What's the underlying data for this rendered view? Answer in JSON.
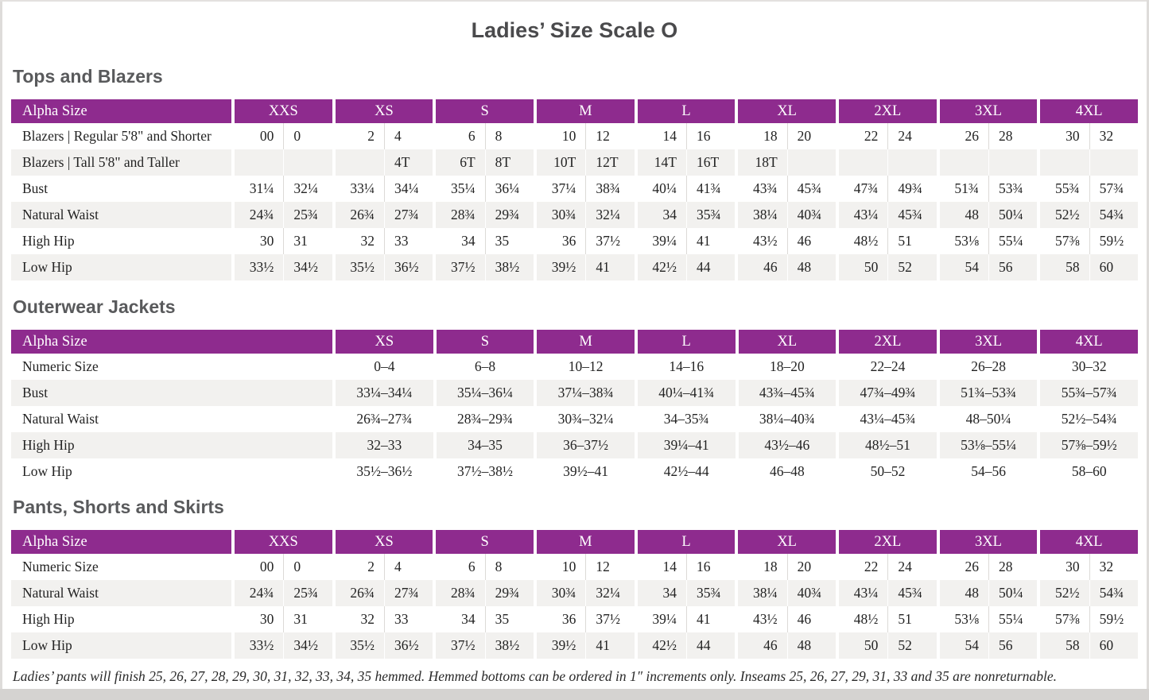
{
  "page": {
    "title": "Ladies’ Size Scale O"
  },
  "colors": {
    "header_purple": "#8e2b8e",
    "row_alt_gray": "#f2f1ef",
    "heading_gray": "#595a5c",
    "body_text": "#232323"
  },
  "sections": [
    {
      "heading": "Tops and Blazers",
      "table": {
        "label_header": "Alpha Size",
        "label_col_width": 277,
        "split_columns": true,
        "columns": [
          "XXS",
          "XS",
          "S",
          "M",
          "L",
          "XL",
          "2XL",
          "3XL",
          "4XL"
        ],
        "rows": [
          {
            "label": "Blazers  |  Regular 5'8\" and Shorter",
            "cells": [
              [
                "00",
                "0"
              ],
              [
                "2",
                "4"
              ],
              [
                "6",
                "8"
              ],
              [
                "10",
                "12"
              ],
              [
                "14",
                "16"
              ],
              [
                "18",
                "20"
              ],
              [
                "22",
                "24"
              ],
              [
                "26",
                "28"
              ],
              [
                "30",
                "32"
              ]
            ]
          },
          {
            "label": "Blazers  |  Tall 5'8\" and Taller",
            "cells": [
              [
                "",
                ""
              ],
              [
                "",
                "4T"
              ],
              [
                "6T",
                "8T"
              ],
              [
                "10T",
                "12T"
              ],
              [
                "14T",
                "16T"
              ],
              [
                "18T",
                ""
              ],
              [
                "",
                ""
              ],
              [
                "",
                ""
              ],
              [
                "",
                ""
              ]
            ]
          },
          {
            "label": "Bust",
            "cells": [
              [
                "31¼",
                "32¼"
              ],
              [
                "33¼",
                "34¼"
              ],
              [
                "35¼",
                "36¼"
              ],
              [
                "37¼",
                "38¾"
              ],
              [
                "40¼",
                "41¾"
              ],
              [
                "43¾",
                "45¾"
              ],
              [
                "47¾",
                "49¾"
              ],
              [
                "51¾",
                "53¾"
              ],
              [
                "55¾",
                "57¾"
              ]
            ]
          },
          {
            "label": "Natural Waist",
            "cells": [
              [
                "24¾",
                "25¾"
              ],
              [
                "26¾",
                "27¾"
              ],
              [
                "28¾",
                "29¾"
              ],
              [
                "30¾",
                "32¼"
              ],
              [
                "34",
                "35¾"
              ],
              [
                "38¼",
                "40¾"
              ],
              [
                "43¼",
                "45¾"
              ],
              [
                "48",
                "50¼"
              ],
              [
                "52½",
                "54¾"
              ]
            ]
          },
          {
            "label": "High Hip",
            "cells": [
              [
                "30",
                "31"
              ],
              [
                "32",
                "33"
              ],
              [
                "34",
                "35"
              ],
              [
                "36",
                "37½"
              ],
              [
                "39¼",
                "41"
              ],
              [
                "43½",
                "46"
              ],
              [
                "48½",
                "51"
              ],
              [
                "53⅛",
                "55¼"
              ],
              [
                "57⅜",
                "59½"
              ]
            ]
          },
          {
            "label": "Low Hip",
            "cells": [
              [
                "33½",
                "34½"
              ],
              [
                "35½",
                "36½"
              ],
              [
                "37½",
                "38½"
              ],
              [
                "39½",
                "41"
              ],
              [
                "42½",
                "44"
              ],
              [
                "46",
                "48"
              ],
              [
                "50",
                "52"
              ],
              [
                "54",
                "56"
              ],
              [
                "58",
                "60"
              ]
            ]
          }
        ]
      }
    },
    {
      "heading": "Outerwear Jackets",
      "table": {
        "label_header": "Alpha Size",
        "label_col_width": 404,
        "split_columns": false,
        "columns": [
          "XS",
          "S",
          "M",
          "L",
          "XL",
          "2XL",
          "3XL",
          "4XL"
        ],
        "rows": [
          {
            "label": "Numeric Size",
            "cells": [
              "0–4",
              "6–8",
              "10–12",
              "14–16",
              "18–20",
              "22–24",
              "26–28",
              "30–32"
            ]
          },
          {
            "label": "Bust",
            "cells": [
              "33¼–34¼",
              "35¼–36¼",
              "37¼–38¾",
              "40¼–41¾",
              "43¾–45¾",
              "47¾–49¾",
              "51¾–53¾",
              "55¾–57¾"
            ]
          },
          {
            "label": "Natural Waist",
            "cells": [
              "26¾–27¾",
              "28¾–29¾",
              "30¾–32¼",
              "34–35¾",
              "38¼–40¾",
              "43¼–45¾",
              "48–50¼",
              "52½–54¾"
            ]
          },
          {
            "label": "High Hip",
            "cells": [
              "32–33",
              "34–35",
              "36–37½",
              "39¼–41",
              "43½–46",
              "48½–51",
              "53⅛–55¼",
              "57⅜–59½"
            ]
          },
          {
            "label": "Low Hip",
            "cells": [
              "35½–36½",
              "37½–38½",
              "39½–41",
              "42½–44",
              "46–48",
              "50–52",
              "54–56",
              "58–60"
            ]
          }
        ]
      }
    },
    {
      "heading": "Pants, Shorts and Skirts",
      "table": {
        "label_header": "Alpha Size",
        "label_col_width": 277,
        "split_columns": true,
        "columns": [
          "XXS",
          "XS",
          "S",
          "M",
          "L",
          "XL",
          "2XL",
          "3XL",
          "4XL"
        ],
        "rows": [
          {
            "label": "Numeric Size",
            "cells": [
              [
                "00",
                "0"
              ],
              [
                "2",
                "4"
              ],
              [
                "6",
                "8"
              ],
              [
                "10",
                "12"
              ],
              [
                "14",
                "16"
              ],
              [
                "18",
                "20"
              ],
              [
                "22",
                "24"
              ],
              [
                "26",
                "28"
              ],
              [
                "30",
                "32"
              ]
            ]
          },
          {
            "label": "Natural Waist",
            "cells": [
              [
                "24¾",
                "25¾"
              ],
              [
                "26¾",
                "27¾"
              ],
              [
                "28¾",
                "29¾"
              ],
              [
                "30¾",
                "32¼"
              ],
              [
                "34",
                "35¾"
              ],
              [
                "38¼",
                "40¾"
              ],
              [
                "43¼",
                "45¾"
              ],
              [
                "48",
                "50¼"
              ],
              [
                "52½",
                "54¾"
              ]
            ]
          },
          {
            "label": "High Hip",
            "cells": [
              [
                "30",
                "31"
              ],
              [
                "32",
                "33"
              ],
              [
                "34",
                "35"
              ],
              [
                "36",
                "37½"
              ],
              [
                "39¼",
                "41"
              ],
              [
                "43½",
                "46"
              ],
              [
                "48½",
                "51"
              ],
              [
                "53⅛",
                "55¼"
              ],
              [
                "57⅜",
                "59½"
              ]
            ]
          },
          {
            "label": "Low Hip",
            "cells": [
              [
                "33½",
                "34½"
              ],
              [
                "35½",
                "36½"
              ],
              [
                "37½",
                "38½"
              ],
              [
                "39½",
                "41"
              ],
              [
                "42½",
                "44"
              ],
              [
                "46",
                "48"
              ],
              [
                "50",
                "52"
              ],
              [
                "54",
                "56"
              ],
              [
                "58",
                "60"
              ]
            ]
          }
        ]
      }
    }
  ],
  "footnote": "Ladies’ pants will finish 25, 26, 27, 28, 29, 30, 31, 32, 33, 34, 35 hemmed. Hemmed bottoms can be ordered in 1″ increments only. Inseams 25, 26, 27, 29, 31, 33 and 35 are nonreturnable."
}
